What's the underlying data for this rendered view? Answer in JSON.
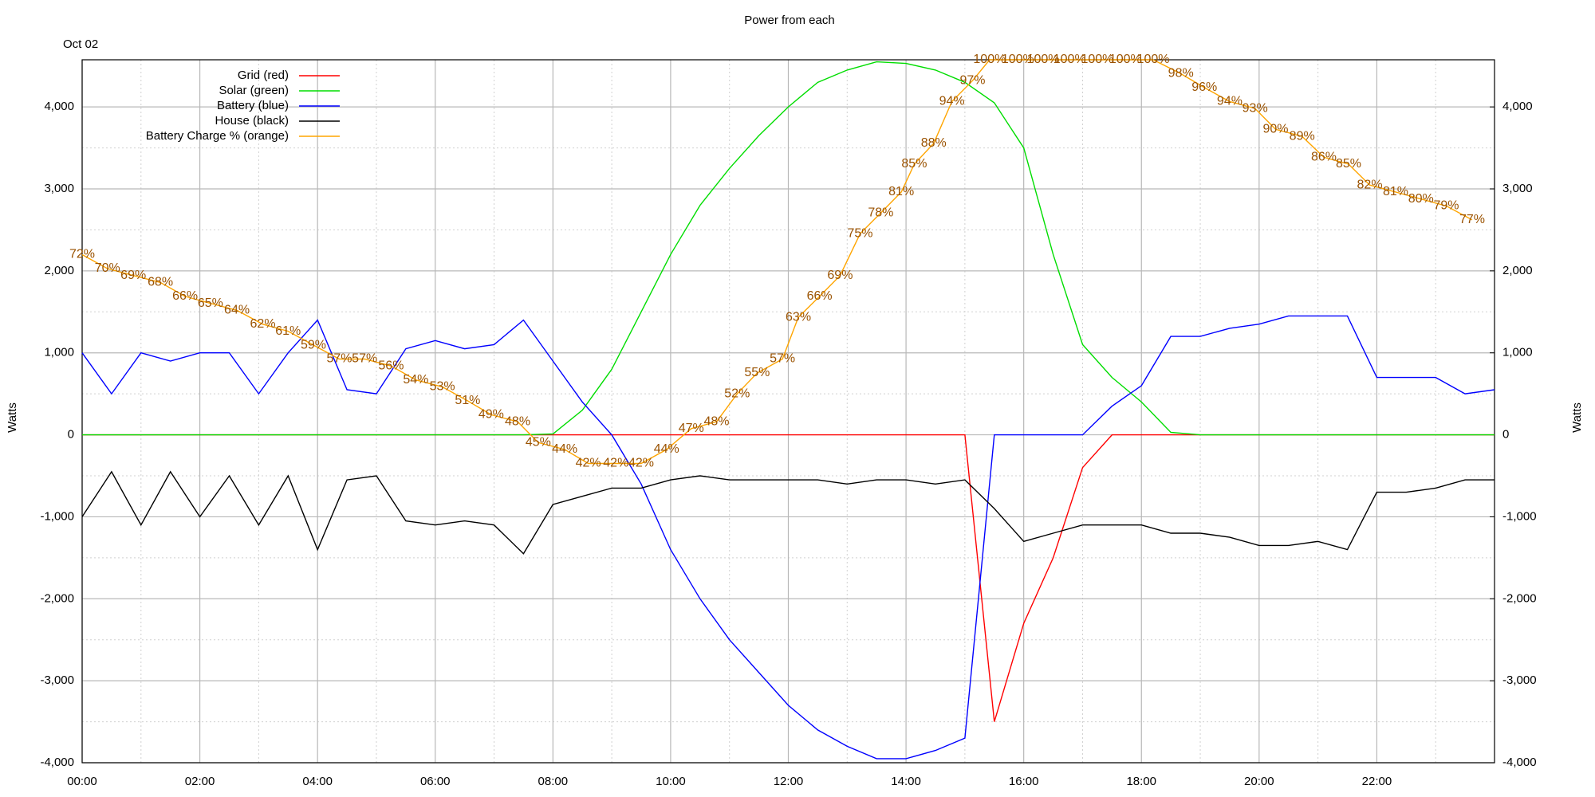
{
  "chart_data": {
    "type": "line",
    "title": "Power from each",
    "annotation": "Oct 02",
    "ylabel": "Watts",
    "y2label": "Watts",
    "x": [
      0,
      0.5,
      1,
      1.5,
      2,
      2.5,
      3,
      3.5,
      4,
      4.5,
      5,
      5.5,
      6,
      6.5,
      7,
      7.5,
      8,
      8.5,
      9,
      9.5,
      10,
      10.5,
      11,
      11.5,
      12,
      12.5,
      13,
      13.5,
      14,
      14.5,
      15,
      15.5,
      16,
      16.5,
      17,
      17.5,
      18,
      18.5,
      19,
      19.5,
      20,
      20.5,
      21,
      21.5,
      22,
      22.5,
      23,
      23.5,
      24
    ],
    "xlim": [
      0,
      24
    ],
    "xticks": [
      {
        "value": 0,
        "label": "00:00"
      },
      {
        "value": 2,
        "label": "02:00"
      },
      {
        "value": 4,
        "label": "04:00"
      },
      {
        "value": 6,
        "label": "06:00"
      },
      {
        "value": 8,
        "label": "08:00"
      },
      {
        "value": 10,
        "label": "10:00"
      },
      {
        "value": 12,
        "label": "12:00"
      },
      {
        "value": 14,
        "label": "14:00"
      },
      {
        "value": 16,
        "label": "16:00"
      },
      {
        "value": 18,
        "label": "18:00"
      },
      {
        "value": 20,
        "label": "20:00"
      },
      {
        "value": 22,
        "label": "22:00"
      }
    ],
    "ylim": [
      -4000,
      4575
    ],
    "yticks": [
      {
        "value": -4000,
        "label": "-4,000"
      },
      {
        "value": -3000,
        "label": "-3,000"
      },
      {
        "value": -2000,
        "label": "-2,000"
      },
      {
        "value": -1000,
        "label": "-1,000"
      },
      0,
      {
        "value": 1000,
        "label": "1,000"
      },
      {
        "value": 2000,
        "label": "2,000"
      },
      {
        "value": 3000,
        "label": "3,000"
      },
      {
        "value": 4000,
        "label": "4,000"
      }
    ],
    "y2lim": [
      -4000,
      4575
    ],
    "y2ticks": [
      {
        "value": -4000,
        "label": "-4,000"
      },
      {
        "value": -3000,
        "label": "-3,000"
      },
      {
        "value": -2000,
        "label": "-2,000"
      },
      {
        "value": -1000,
        "label": "-1,000"
      },
      0,
      {
        "value": 1000,
        "label": "1,000"
      },
      {
        "value": 2000,
        "label": "2,000"
      },
      {
        "value": 3000,
        "label": "3,000"
      },
      {
        "value": 4000,
        "label": "4,000"
      }
    ],
    "y3lim": [
      -1,
      100
    ],
    "grid": true,
    "legend": "top left",
    "series": [
      {
        "name": "Grid (red)",
        "color": "#ff0000",
        "values": [
          0,
          0,
          0,
          0,
          0,
          0,
          0,
          0,
          0,
          0,
          0,
          0,
          0,
          0,
          0,
          0,
          0,
          0,
          0,
          0,
          0,
          0,
          0,
          0,
          0,
          0,
          0,
          0,
          0,
          0,
          0,
          -3500,
          -2300,
          -1500,
          -400,
          0,
          0,
          0,
          0,
          0,
          0,
          0,
          0,
          0,
          0,
          0,
          0,
          0,
          0
        ]
      },
      {
        "name": "Solar (green)",
        "color": "#00dd00",
        "values": [
          0,
          0,
          0,
          0,
          0,
          0,
          0,
          0,
          0,
          0,
          0,
          0,
          0,
          0,
          0,
          0,
          10,
          300,
          800,
          1500,
          2200,
          2800,
          3250,
          3650,
          4000,
          4300,
          4450,
          4550,
          4530,
          4450,
          4300,
          4050,
          3500,
          2200,
          1100,
          700,
          400,
          30,
          0,
          0,
          0,
          0,
          0,
          0,
          0,
          0,
          0,
          0,
          0
        ]
      },
      {
        "name": "Battery (blue)",
        "color": "#0000ff",
        "values": [
          1000,
          500,
          1000,
          900,
          1000,
          1000,
          500,
          1000,
          1400,
          550,
          500,
          1050,
          1150,
          1050,
          1100,
          1400,
          900,
          400,
          0,
          -600,
          -1400,
          -2000,
          -2500,
          -2900,
          -3300,
          -3600,
          -3800,
          -3950,
          -3950,
          -3850,
          -3700,
          0,
          0,
          0,
          0,
          350,
          600,
          1200,
          1200,
          1300,
          1350,
          1450,
          1450,
          1450,
          700,
          700,
          700,
          500,
          550
        ]
      },
      {
        "name": "House (black)",
        "color": "#000000",
        "values": [
          -1000,
          -450,
          -1100,
          -450,
          -1000,
          -500,
          -1100,
          -500,
          -1400,
          -550,
          -500,
          -1050,
          -1100,
          -1050,
          -1100,
          -1450,
          -850,
          -750,
          -650,
          -650,
          -550,
          -500,
          -550,
          -550,
          -550,
          -550,
          -600,
          -550,
          -550,
          -600,
          -550,
          -900,
          -1300,
          -1200,
          -1100,
          -1100,
          -1100,
          -1200,
          -1200,
          -1250,
          -1350,
          -1350,
          -1300,
          -1400,
          -700,
          -700,
          -650,
          -550,
          -550
        ]
      },
      {
        "name": "Battery Charge % (orange)",
        "color": "#ffa500",
        "label_color": "#9a5200",
        "axis": "y3",
        "x": [
          0,
          0.43,
          0.87,
          1.33,
          1.75,
          2.18,
          2.63,
          3.07,
          3.5,
          3.93,
          4.37,
          4.8,
          5.25,
          5.67,
          6.12,
          6.55,
          6.95,
          7.4,
          7.75,
          8.2,
          8.6,
          9.07,
          9.5,
          9.93,
          10.35,
          10.78,
          11.13,
          11.47,
          11.9,
          12.17,
          12.53,
          12.88,
          13.22,
          13.57,
          13.92,
          14.14,
          14.47,
          14.78,
          15.13,
          15.42,
          15.9,
          16.33,
          16.78,
          17.25,
          17.73,
          18.2,
          18.67,
          19.07,
          19.5,
          19.93,
          20.28,
          20.73,
          21.1,
          21.52,
          21.88,
          22.32,
          22.75,
          23.18,
          23.62
        ],
        "values": [
          72,
          70,
          69,
          68,
          66,
          65,
          64,
          62,
          61,
          59,
          57,
          57,
          56,
          54,
          53,
          51,
          49,
          48,
          45,
          44,
          42,
          42,
          42,
          44,
          47,
          48,
          52,
          55,
          57,
          63,
          66,
          69,
          75,
          78,
          81,
          85,
          88,
          94,
          97,
          100,
          100,
          100,
          100,
          100,
          100,
          100,
          98,
          96,
          94,
          93,
          90,
          89,
          86,
          85,
          82,
          81,
          80,
          79,
          77
        ],
        "value_labels": [
          "72%",
          "70%",
          "69%",
          "68%",
          "66%",
          "65%",
          "64%",
          "62%",
          "61%",
          "59%",
          "57%",
          "57%",
          "56%",
          "54%",
          "53%",
          "51%",
          "49%",
          "48%",
          "45%",
          "44%",
          "42%",
          "42%",
          "42%",
          "44%",
          "47%",
          "48%",
          "52%",
          "55%",
          "57%",
          "63%",
          "66%",
          "69%",
          "75%",
          "78%",
          "81%",
          "85%",
          "88%",
          "94%",
          "97%",
          "100%",
          "100%",
          "100%",
          "100%",
          "100%",
          "100%",
          "100%",
          "98%",
          "96%",
          "94%",
          "93%",
          "90%",
          "89%",
          "86%",
          "85%",
          "82%",
          "81%",
          "80%",
          "79%",
          "77%"
        ]
      }
    ]
  }
}
